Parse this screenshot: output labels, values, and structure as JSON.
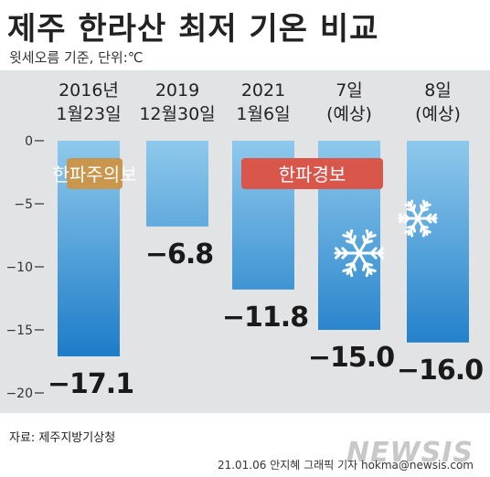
{
  "title": "제주 한라산 최저 기온 비교",
  "subtitle": "윗세오름 기준, 단위:℃",
  "source": "자료: 제주지방기상청",
  "credit": "21.01.06 안지혜 그래픽 기자 hokma@newsis.com",
  "watermark": "NEWSIS",
  "chart_data": {
    "type": "bar",
    "categories": [
      [
        "2016년",
        "1월23일"
      ],
      [
        "2019",
        "12월30일"
      ],
      [
        "2021",
        "1월6일"
      ],
      [
        "7일",
        "(예상)"
      ],
      [
        "8일",
        "(예상)"
      ]
    ],
    "values": [
      -17.1,
      -6.8,
      -11.8,
      -15.0,
      -16.0
    ],
    "value_labels": [
      "−17.1",
      "−6.8",
      "−11.8",
      "−15.0",
      "−16.0"
    ],
    "ylim": [
      -20,
      0
    ],
    "yticks": [
      0,
      -5,
      -10,
      -15,
      -20
    ],
    "ytick_labels": [
      "0",
      "−5",
      "−10",
      "−15",
      "−20"
    ],
    "grid": false,
    "badges": [
      {
        "text": "한파주의보",
        "color": "#c9964e",
        "from": 0,
        "to": 1
      },
      {
        "text": "한파경보",
        "color": "#d9574a",
        "from": 2,
        "to": 4
      }
    ],
    "colors": {
      "bar_top": "#8ec9ec",
      "bar_bottom": "#0a6fc2"
    },
    "decorations": [
      "snowflake-icon",
      "snowflake-icon"
    ]
  }
}
